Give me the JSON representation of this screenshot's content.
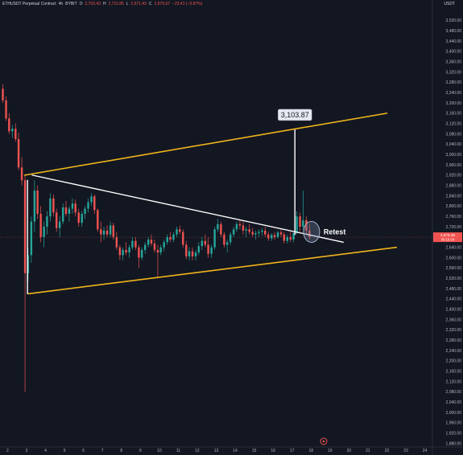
{
  "header": {
    "symbol": "ETHUSDT Perpetual Contract",
    "interval": "4h",
    "exchange": "BYBIT",
    "open_label": "O",
    "open_value": "2,703.43",
    "high_label": "H",
    "high_value": "2,711.85",
    "low_label": "L",
    "low_value": "2,671.43",
    "close_label": "C",
    "close_value": "2,679.67",
    "change": "−23.41 (−0.87%)"
  },
  "currency": "USDT",
  "price_tag": {
    "value": "2,679.38",
    "countdown": "00:19:34"
  },
  "colors": {
    "background": "#131722",
    "up": "#26a69a",
    "down": "#ef5350",
    "channel": "#f0b51a",
    "trendline": "#ffffff"
  },
  "annotations": {
    "target_label": "3,103.87",
    "retest_label": "Retest"
  },
  "bottom_icon": "clock-alert-icon",
  "chart_data": {
    "type": "candlestick",
    "title": "ETHUSDT Perpetual Contract, 4h, BYBIT",
    "xlabel": "",
    "ylabel": "",
    "x_tick_labels": [
      "2",
      "3",
      "4",
      "5",
      "6",
      "7",
      "8",
      "9",
      "10",
      "11",
      "12",
      "13",
      "14",
      "15",
      "16",
      "17",
      "18",
      "19",
      "20",
      "21",
      "22",
      "23",
      "24"
    ],
    "y_tick_labels": [
      "3,520.00",
      "3,480.00",
      "3,440.00",
      "3,400.00",
      "3,360.00",
      "3,320.00",
      "3,280.00",
      "3,240.00",
      "3,200.00",
      "3,160.00",
      "3,120.00",
      "3,080.00",
      "3,040.00",
      "3,000.00",
      "2,960.00",
      "2,920.00",
      "2,880.00",
      "2,840.00",
      "2,800.00",
      "2,760.00",
      "2,720.00",
      "2,680.00",
      "2,640.00",
      "2,600.00",
      "2,560.00",
      "2,520.00",
      "2,480.00",
      "2,440.00",
      "2,400.00",
      "2,360.00",
      "2,320.00",
      "2,280.00",
      "2,240.00",
      "2,200.00",
      "2,160.00",
      "2,120.00",
      "2,080.00",
      "2,040.00",
      "2,000.00",
      "1,960.00",
      "1,920.00",
      "1,880.00"
    ],
    "xlim": [
      1.6,
      24.4
    ],
    "ylim": [
      1866,
      3568
    ],
    "grid": false,
    "candles": [
      {
        "x": 1.75,
        "o": 3255,
        "h": 3272,
        "l": 3200,
        "c": 3210
      },
      {
        "x": 1.92,
        "o": 3210,
        "h": 3225,
        "l": 3130,
        "c": 3140
      },
      {
        "x": 2.08,
        "o": 3140,
        "h": 3160,
        "l": 3080,
        "c": 3090
      },
      {
        "x": 2.25,
        "o": 3090,
        "h": 3115,
        "l": 3065,
        "c": 3100
      },
      {
        "x": 2.42,
        "o": 3100,
        "h": 3120,
        "l": 3050,
        "c": 3060
      },
      {
        "x": 2.58,
        "o": 3060,
        "h": 3085,
        "l": 2940,
        "c": 2950
      },
      {
        "x": 2.75,
        "o": 2950,
        "h": 2990,
        "l": 2880,
        "c": 2900
      },
      {
        "x": 2.92,
        "o": 2900,
        "h": 2920,
        "l": 2080,
        "c": 2540
      },
      {
        "x": 3.08,
        "o": 2540,
        "h": 2640,
        "l": 2510,
        "c": 2610
      },
      {
        "x": 3.25,
        "o": 2610,
        "h": 2760,
        "l": 2580,
        "c": 2740
      },
      {
        "x": 3.42,
        "o": 2740,
        "h": 2900,
        "l": 2700,
        "c": 2860
      },
      {
        "x": 3.58,
        "o": 2860,
        "h": 2880,
        "l": 2750,
        "c": 2770
      },
      {
        "x": 3.75,
        "o": 2770,
        "h": 2800,
        "l": 2660,
        "c": 2680
      },
      {
        "x": 3.92,
        "o": 2680,
        "h": 2740,
        "l": 2640,
        "c": 2720
      },
      {
        "x": 4.08,
        "o": 2720,
        "h": 2780,
        "l": 2690,
        "c": 2760
      },
      {
        "x": 4.25,
        "o": 2760,
        "h": 2850,
        "l": 2740,
        "c": 2830
      },
      {
        "x": 4.42,
        "o": 2830,
        "h": 2845,
        "l": 2760,
        "c": 2775
      },
      {
        "x": 4.58,
        "o": 2775,
        "h": 2790,
        "l": 2700,
        "c": 2715
      },
      {
        "x": 4.75,
        "o": 2715,
        "h": 2760,
        "l": 2680,
        "c": 2740
      },
      {
        "x": 4.92,
        "o": 2740,
        "h": 2810,
        "l": 2730,
        "c": 2795
      },
      {
        "x": 5.08,
        "o": 2795,
        "h": 2820,
        "l": 2760,
        "c": 2770
      },
      {
        "x": 5.25,
        "o": 2770,
        "h": 2800,
        "l": 2740,
        "c": 2790
      },
      {
        "x": 5.42,
        "o": 2790,
        "h": 2830,
        "l": 2770,
        "c": 2810
      },
      {
        "x": 5.58,
        "o": 2810,
        "h": 2825,
        "l": 2760,
        "c": 2775
      },
      {
        "x": 5.75,
        "o": 2775,
        "h": 2790,
        "l": 2720,
        "c": 2735
      },
      {
        "x": 5.92,
        "o": 2735,
        "h": 2780,
        "l": 2720,
        "c": 2770
      },
      {
        "x": 6.08,
        "o": 2770,
        "h": 2800,
        "l": 2750,
        "c": 2790
      },
      {
        "x": 6.25,
        "o": 2790,
        "h": 2830,
        "l": 2775,
        "c": 2815
      },
      {
        "x": 6.42,
        "o": 2815,
        "h": 2850,
        "l": 2800,
        "c": 2838
      },
      {
        "x": 6.58,
        "o": 2838,
        "h": 2845,
        "l": 2770,
        "c": 2785
      },
      {
        "x": 6.75,
        "o": 2785,
        "h": 2790,
        "l": 2700,
        "c": 2710
      },
      {
        "x": 6.92,
        "o": 2710,
        "h": 2740,
        "l": 2660,
        "c": 2690
      },
      {
        "x": 7.08,
        "o": 2690,
        "h": 2720,
        "l": 2670,
        "c": 2705
      },
      {
        "x": 7.25,
        "o": 2705,
        "h": 2725,
        "l": 2680,
        "c": 2690
      },
      {
        "x": 7.42,
        "o": 2690,
        "h": 2740,
        "l": 2680,
        "c": 2725
      },
      {
        "x": 7.58,
        "o": 2725,
        "h": 2735,
        "l": 2670,
        "c": 2680
      },
      {
        "x": 7.75,
        "o": 2680,
        "h": 2700,
        "l": 2630,
        "c": 2640
      },
      {
        "x": 7.92,
        "o": 2640,
        "h": 2650,
        "l": 2590,
        "c": 2610
      },
      {
        "x": 8.08,
        "o": 2610,
        "h": 2640,
        "l": 2590,
        "c": 2630
      },
      {
        "x": 8.25,
        "o": 2630,
        "h": 2660,
        "l": 2610,
        "c": 2620
      },
      {
        "x": 8.42,
        "o": 2620,
        "h": 2650,
        "l": 2600,
        "c": 2640
      },
      {
        "x": 8.58,
        "o": 2640,
        "h": 2680,
        "l": 2630,
        "c": 2665
      },
      {
        "x": 8.75,
        "o": 2665,
        "h": 2680,
        "l": 2630,
        "c": 2640
      },
      {
        "x": 8.92,
        "o": 2640,
        "h": 2650,
        "l": 2560,
        "c": 2600
      },
      {
        "x": 9.08,
        "o": 2600,
        "h": 2640,
        "l": 2590,
        "c": 2630
      },
      {
        "x": 9.25,
        "o": 2630,
        "h": 2660,
        "l": 2615,
        "c": 2650
      },
      {
        "x": 9.42,
        "o": 2650,
        "h": 2680,
        "l": 2640,
        "c": 2670
      },
      {
        "x": 9.58,
        "o": 2670,
        "h": 2690,
        "l": 2645,
        "c": 2655
      },
      {
        "x": 9.75,
        "o": 2655,
        "h": 2670,
        "l": 2620,
        "c": 2630
      },
      {
        "x": 9.92,
        "o": 2630,
        "h": 2650,
        "l": 2520,
        "c": 2620
      },
      {
        "x": 10.08,
        "o": 2620,
        "h": 2650,
        "l": 2610,
        "c": 2640
      },
      {
        "x": 10.25,
        "o": 2640,
        "h": 2670,
        "l": 2625,
        "c": 2660
      },
      {
        "x": 10.42,
        "o": 2660,
        "h": 2690,
        "l": 2650,
        "c": 2680
      },
      {
        "x": 10.58,
        "o": 2680,
        "h": 2700,
        "l": 2660,
        "c": 2670
      },
      {
        "x": 10.75,
        "o": 2670,
        "h": 2700,
        "l": 2660,
        "c": 2690
      },
      {
        "x": 10.92,
        "o": 2690,
        "h": 2720,
        "l": 2680,
        "c": 2710
      },
      {
        "x": 11.08,
        "o": 2710,
        "h": 2725,
        "l": 2690,
        "c": 2700
      },
      {
        "x": 11.25,
        "o": 2700,
        "h": 2710,
        "l": 2640,
        "c": 2650
      },
      {
        "x": 11.42,
        "o": 2650,
        "h": 2665,
        "l": 2595,
        "c": 2605
      },
      {
        "x": 11.58,
        "o": 2605,
        "h": 2640,
        "l": 2590,
        "c": 2625
      },
      {
        "x": 11.75,
        "o": 2625,
        "h": 2640,
        "l": 2590,
        "c": 2605
      },
      {
        "x": 11.92,
        "o": 2605,
        "h": 2630,
        "l": 2590,
        "c": 2620
      },
      {
        "x": 12.08,
        "o": 2620,
        "h": 2660,
        "l": 2610,
        "c": 2645
      },
      {
        "x": 12.25,
        "o": 2645,
        "h": 2680,
        "l": 2630,
        "c": 2665
      },
      {
        "x": 12.42,
        "o": 2665,
        "h": 2690,
        "l": 2640,
        "c": 2650
      },
      {
        "x": 12.58,
        "o": 2650,
        "h": 2680,
        "l": 2600,
        "c": 2615
      },
      {
        "x": 12.75,
        "o": 2615,
        "h": 2650,
        "l": 2600,
        "c": 2640
      },
      {
        "x": 12.92,
        "o": 2640,
        "h": 2720,
        "l": 2630,
        "c": 2710
      },
      {
        "x": 13.08,
        "o": 2710,
        "h": 2750,
        "l": 2700,
        "c": 2730
      },
      {
        "x": 13.25,
        "o": 2730,
        "h": 2740,
        "l": 2680,
        "c": 2690
      },
      {
        "x": 13.42,
        "o": 2690,
        "h": 2700,
        "l": 2640,
        "c": 2650
      },
      {
        "x": 13.58,
        "o": 2650,
        "h": 2670,
        "l": 2620,
        "c": 2660
      },
      {
        "x": 13.75,
        "o": 2660,
        "h": 2700,
        "l": 2650,
        "c": 2690
      },
      {
        "x": 13.92,
        "o": 2690,
        "h": 2720,
        "l": 2680,
        "c": 2710
      },
      {
        "x": 14.08,
        "o": 2710,
        "h": 2740,
        "l": 2700,
        "c": 2730
      },
      {
        "x": 14.25,
        "o": 2730,
        "h": 2745,
        "l": 2710,
        "c": 2725
      },
      {
        "x": 14.42,
        "o": 2725,
        "h": 2740,
        "l": 2690,
        "c": 2705
      },
      {
        "x": 14.58,
        "o": 2705,
        "h": 2720,
        "l": 2680,
        "c": 2710
      },
      {
        "x": 14.75,
        "o": 2710,
        "h": 2730,
        "l": 2690,
        "c": 2700
      },
      {
        "x": 14.92,
        "o": 2700,
        "h": 2715,
        "l": 2680,
        "c": 2690
      },
      {
        "x": 15.08,
        "o": 2690,
        "h": 2705,
        "l": 2670,
        "c": 2695
      },
      {
        "x": 15.25,
        "o": 2695,
        "h": 2710,
        "l": 2680,
        "c": 2700
      },
      {
        "x": 15.42,
        "o": 2700,
        "h": 2715,
        "l": 2685,
        "c": 2705
      },
      {
        "x": 15.58,
        "o": 2705,
        "h": 2720,
        "l": 2680,
        "c": 2690
      },
      {
        "x": 15.75,
        "o": 2690,
        "h": 2700,
        "l": 2665,
        "c": 2675
      },
      {
        "x": 15.92,
        "o": 2675,
        "h": 2695,
        "l": 2665,
        "c": 2688
      },
      {
        "x": 16.08,
        "o": 2688,
        "h": 2700,
        "l": 2670,
        "c": 2680
      },
      {
        "x": 16.25,
        "o": 2680,
        "h": 2705,
        "l": 2675,
        "c": 2698
      },
      {
        "x": 16.42,
        "o": 2698,
        "h": 2710,
        "l": 2680,
        "c": 2690
      },
      {
        "x": 16.58,
        "o": 2690,
        "h": 2700,
        "l": 2655,
        "c": 2665
      },
      {
        "x": 16.75,
        "o": 2665,
        "h": 2690,
        "l": 2655,
        "c": 2680
      },
      {
        "x": 16.92,
        "o": 2680,
        "h": 2700,
        "l": 2660,
        "c": 2670
      },
      {
        "x": 17.08,
        "o": 2670,
        "h": 2700,
        "l": 2660,
        "c": 2695
      },
      {
        "x": 17.25,
        "o": 2695,
        "h": 2780,
        "l": 2690,
        "c": 2760
      },
      {
        "x": 17.42,
        "o": 2760,
        "h": 2775,
        "l": 2700,
        "c": 2720
      },
      {
        "x": 17.58,
        "o": 2720,
        "h": 2860,
        "l": 2710,
        "c": 2745
      },
      {
        "x": 17.75,
        "o": 2745,
        "h": 2760,
        "l": 2690,
        "c": 2705
      },
      {
        "x": 17.92,
        "o": 2705,
        "h": 2730,
        "l": 2670,
        "c": 2680
      }
    ],
    "drawings": {
      "upper_channel": {
        "x": [
          2.9,
          22.0
        ],
        "y": [
          2920,
          3160
        ]
      },
      "lower_channel": {
        "x": [
          3.1,
          22.5
        ],
        "y": [
          2460,
          2640
        ]
      },
      "triangle_top": {
        "x": [
          3.3,
          19.7
        ],
        "y": [
          2920,
          2660
        ]
      },
      "triangle_base_leg": {
        "x": [
          3.05,
          3.05
        ],
        "y": [
          2900,
          2460
        ]
      },
      "breakout_leg": {
        "x": [
          17.15,
          17.15
        ],
        "y": [
          2690,
          3095
        ]
      },
      "target": {
        "x": 17.15,
        "y": 3103.87
      },
      "retest_marker": {
        "x": 17.9,
        "y": 2700
      }
    }
  }
}
